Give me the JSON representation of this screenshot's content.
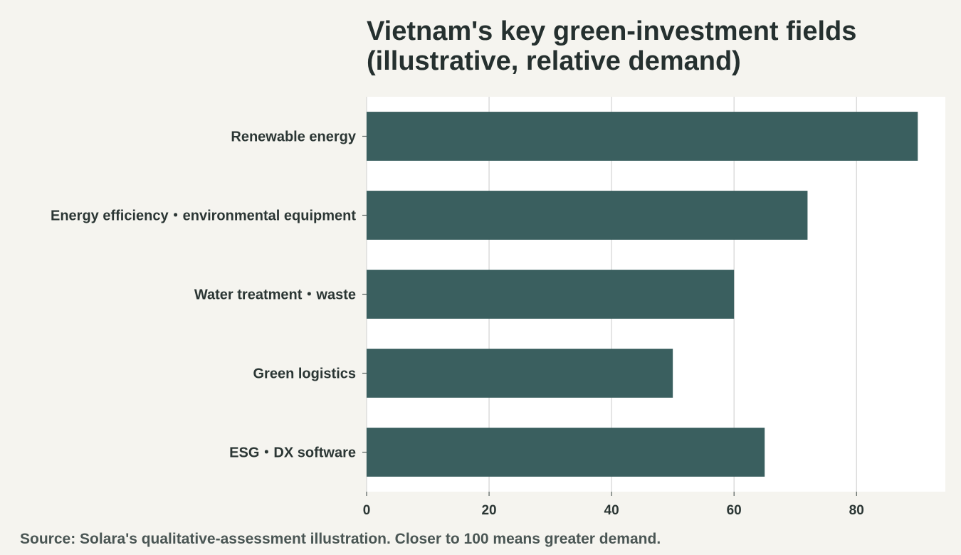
{
  "chart_data": {
    "type": "bar",
    "orientation": "horizontal",
    "title": "Vietnam's key green-investment fields (illustrative, relative demand)",
    "title_lines": [
      "Vietnam's key green-investment fields",
      "(illustrative, relative demand)"
    ],
    "categories": [
      "Renewable energy",
      "Energy efficiency・environmental equipment",
      "Water treatment・waste",
      "Green logistics",
      "ESG・DX software"
    ],
    "values": [
      90,
      72,
      60,
      50,
      65
    ],
    "xlabel": "",
    "ylabel": "",
    "xlim": [
      0,
      94.5
    ],
    "xticks": [
      0,
      20,
      40,
      60,
      80
    ],
    "grid": "vertical",
    "legend": "none",
    "bar_color": "#3a5f5f",
    "plot_background": "#ffffff",
    "page_background": "#f5f4ef",
    "source": "Source: Solara's qualitative-assessment illustration. Closer to 100 means greater demand."
  }
}
